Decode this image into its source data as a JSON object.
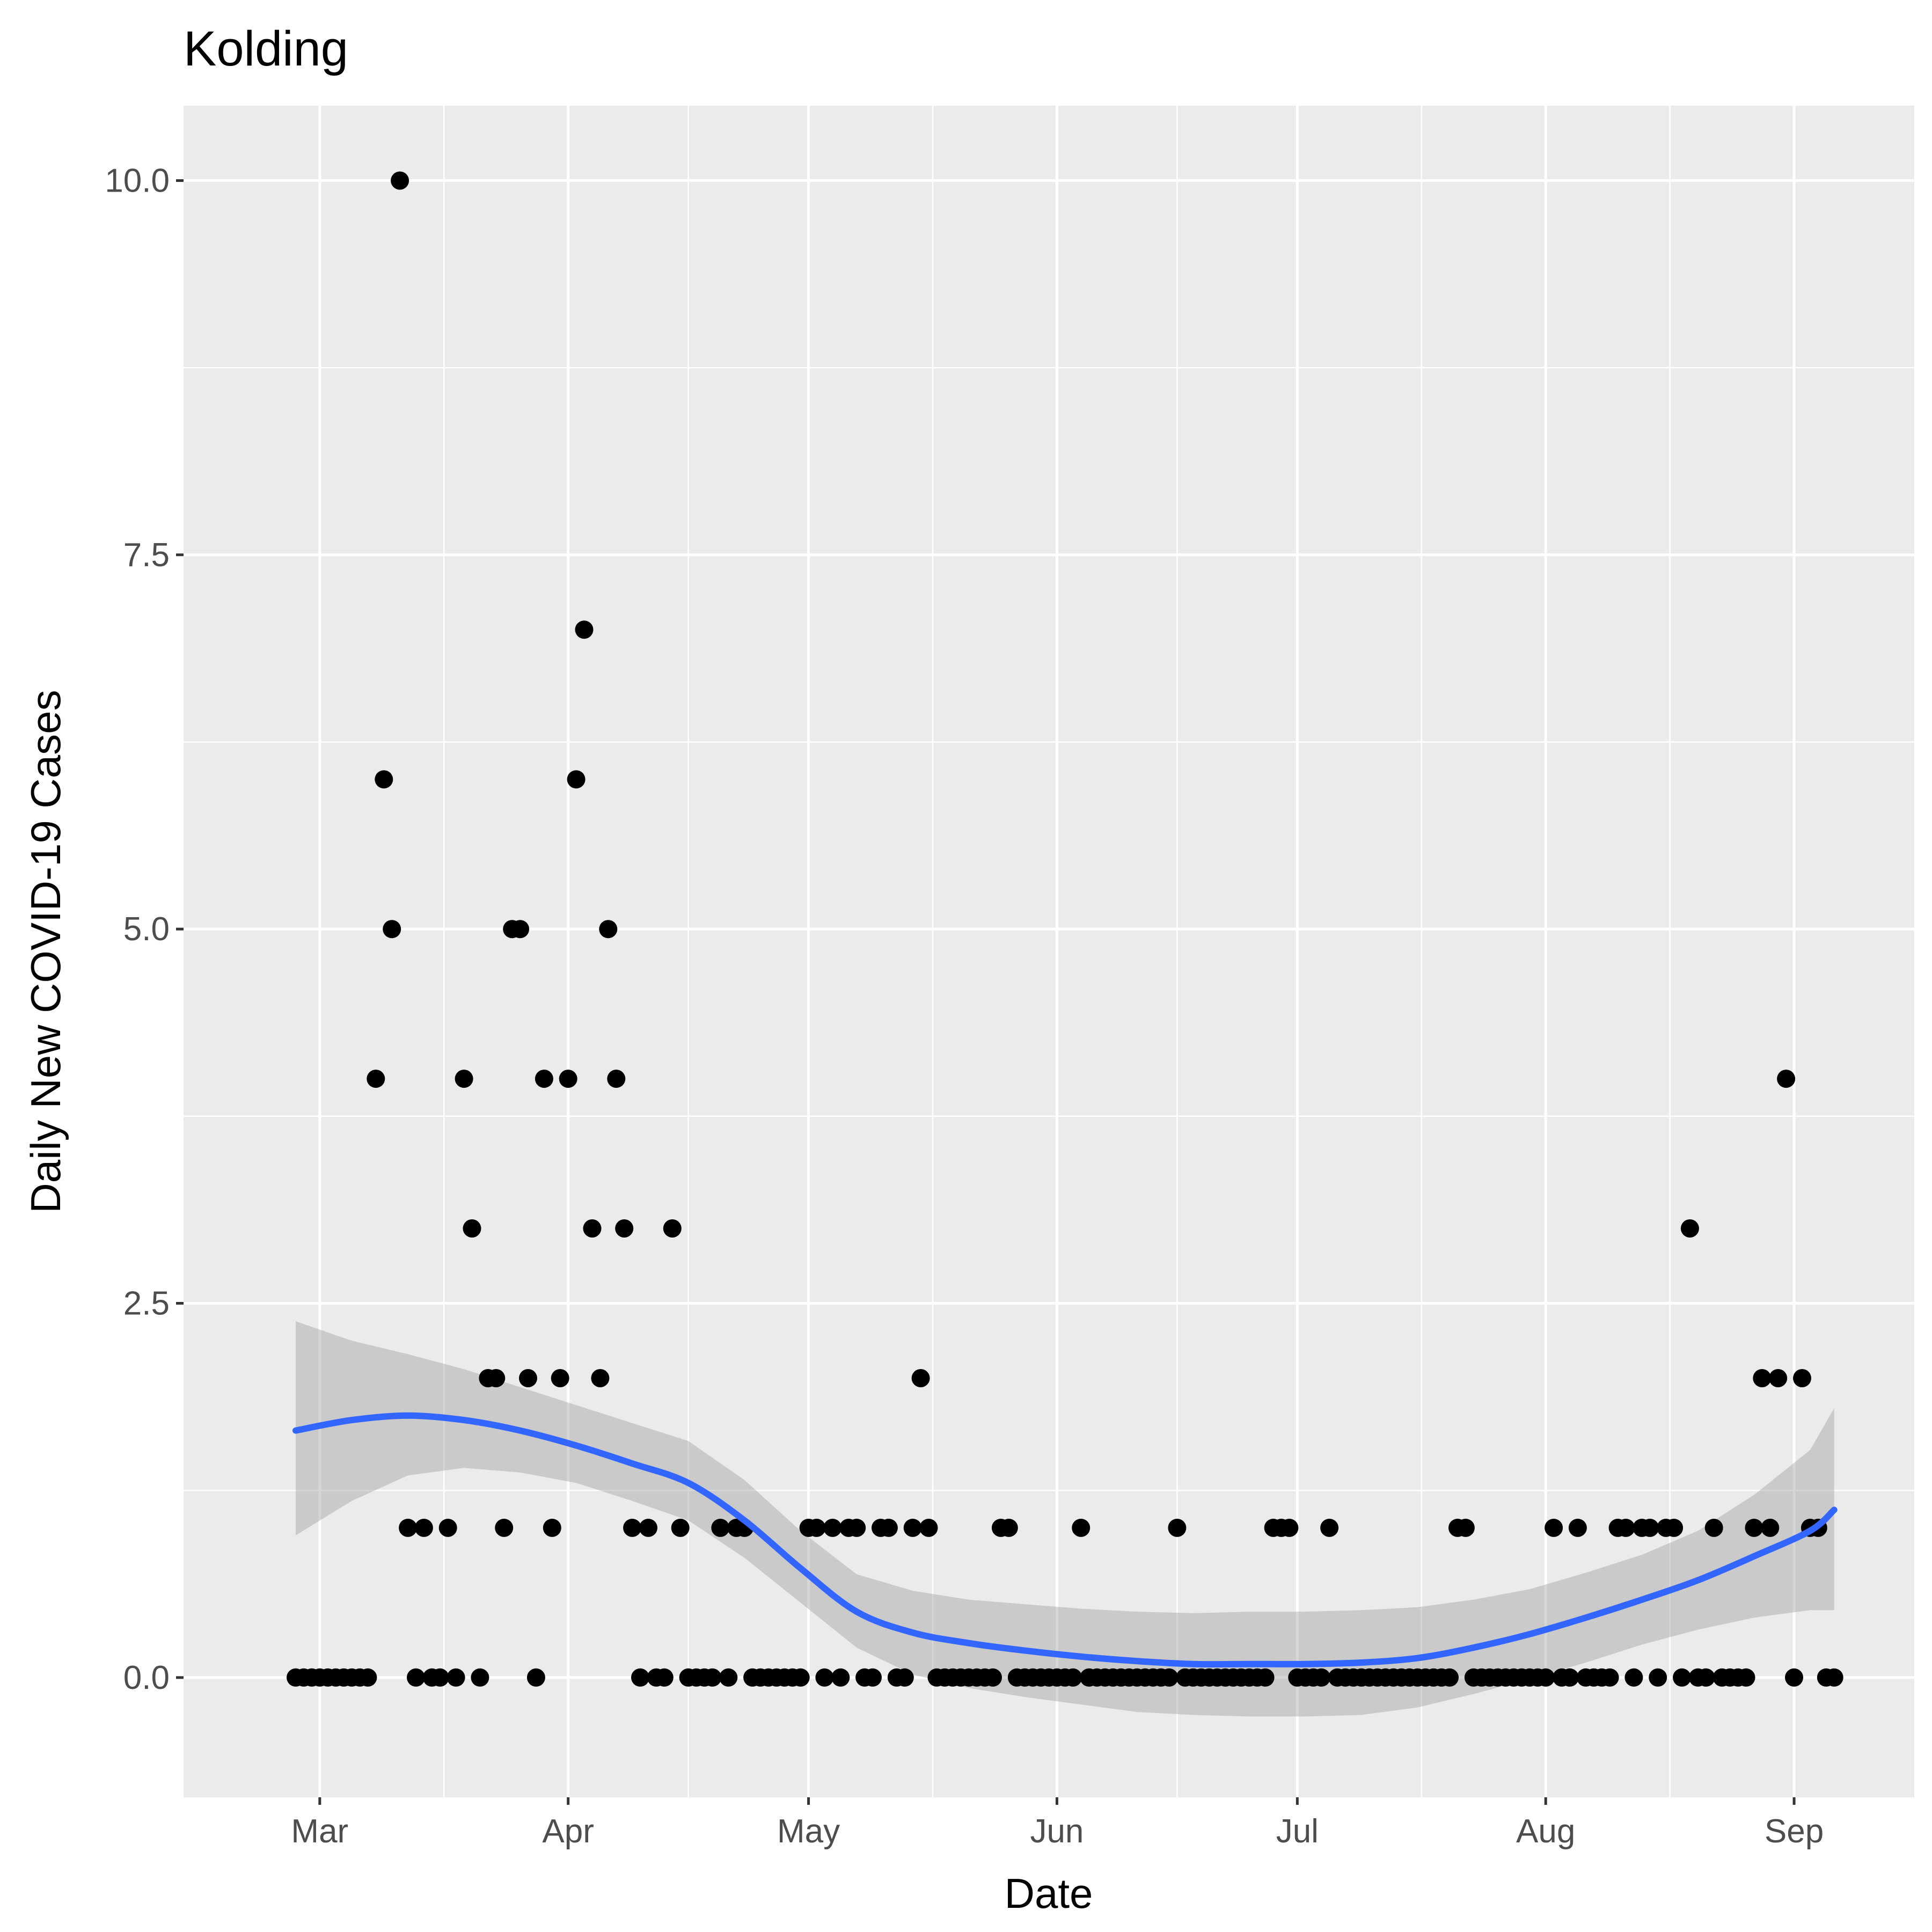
{
  "chart_data": {
    "type": "scatter",
    "title": "Kolding",
    "xlabel": "Date",
    "ylabel": "Daily New COVID-19 Cases",
    "x_ticks": [
      {
        "date": "2020-03-01",
        "label": "Mar"
      },
      {
        "date": "2020-04-01",
        "label": "Apr"
      },
      {
        "date": "2020-05-01",
        "label": "May"
      },
      {
        "date": "2020-06-01",
        "label": "Jun"
      },
      {
        "date": "2020-07-01",
        "label": "Jul"
      },
      {
        "date": "2020-08-01",
        "label": "Aug"
      },
      {
        "date": "2020-09-01",
        "label": "Sep"
      }
    ],
    "y_ticks": [
      {
        "value": 0,
        "label": "0.0"
      },
      {
        "value": 2.5,
        "label": "2.5"
      },
      {
        "value": 5,
        "label": "5.0"
      },
      {
        "value": 7.5,
        "label": "7.5"
      },
      {
        "value": 10,
        "label": "10.0"
      }
    ],
    "xlim": [
      "2020-02-13",
      "2020-09-16"
    ],
    "ylim": [
      -0.8,
      10.5
    ],
    "grid": true,
    "colors": {
      "panel": "#ebebeb",
      "point": "#000000",
      "smooth": "#3366ff",
      "band": "#999999"
    },
    "points": [
      [
        "2020-02-27",
        0
      ],
      [
        "2020-02-28",
        0
      ],
      [
        "2020-02-29",
        0
      ],
      [
        "2020-03-01",
        0
      ],
      [
        "2020-03-02",
        0
      ],
      [
        "2020-03-03",
        0
      ],
      [
        "2020-03-04",
        0
      ],
      [
        "2020-03-05",
        0
      ],
      [
        "2020-03-06",
        0
      ],
      [
        "2020-03-07",
        0
      ],
      [
        "2020-03-08",
        4
      ],
      [
        "2020-03-09",
        6
      ],
      [
        "2020-03-10",
        5
      ],
      [
        "2020-03-11",
        10
      ],
      [
        "2020-03-12",
        1
      ],
      [
        "2020-03-13",
        0
      ],
      [
        "2020-03-14",
        1
      ],
      [
        "2020-03-15",
        0
      ],
      [
        "2020-03-16",
        0
      ],
      [
        "2020-03-17",
        1
      ],
      [
        "2020-03-18",
        0
      ],
      [
        "2020-03-19",
        4
      ],
      [
        "2020-03-20",
        3
      ],
      [
        "2020-03-21",
        0
      ],
      [
        "2020-03-22",
        2
      ],
      [
        "2020-03-23",
        2
      ],
      [
        "2020-03-24",
        1
      ],
      [
        "2020-03-25",
        5
      ],
      [
        "2020-03-26",
        5
      ],
      [
        "2020-03-27",
        2
      ],
      [
        "2020-03-28",
        0
      ],
      [
        "2020-03-29",
        4
      ],
      [
        "2020-03-30",
        1
      ],
      [
        "2020-03-31",
        2
      ],
      [
        "2020-04-01",
        4
      ],
      [
        "2020-04-02",
        6
      ],
      [
        "2020-04-03",
        7
      ],
      [
        "2020-04-04",
        3
      ],
      [
        "2020-04-05",
        2
      ],
      [
        "2020-04-06",
        5
      ],
      [
        "2020-04-07",
        4
      ],
      [
        "2020-04-08",
        3
      ],
      [
        "2020-04-09",
        1
      ],
      [
        "2020-04-10",
        0
      ],
      [
        "2020-04-11",
        1
      ],
      [
        "2020-04-12",
        0
      ],
      [
        "2020-04-13",
        0
      ],
      [
        "2020-04-14",
        3
      ],
      [
        "2020-04-15",
        1
      ],
      [
        "2020-04-16",
        0
      ],
      [
        "2020-04-17",
        0
      ],
      [
        "2020-04-18",
        0
      ],
      [
        "2020-04-19",
        0
      ],
      [
        "2020-04-20",
        1
      ],
      [
        "2020-04-21",
        0
      ],
      [
        "2020-04-22",
        1
      ],
      [
        "2020-04-23",
        1
      ],
      [
        "2020-04-24",
        0
      ],
      [
        "2020-04-25",
        0
      ],
      [
        "2020-04-26",
        0
      ],
      [
        "2020-04-27",
        0
      ],
      [
        "2020-04-28",
        0
      ],
      [
        "2020-04-29",
        0
      ],
      [
        "2020-04-30",
        0
      ],
      [
        "2020-05-01",
        1
      ],
      [
        "2020-05-02",
        1
      ],
      [
        "2020-05-03",
        0
      ],
      [
        "2020-05-04",
        1
      ],
      [
        "2020-05-05",
        0
      ],
      [
        "2020-05-06",
        1
      ],
      [
        "2020-05-07",
        1
      ],
      [
        "2020-05-08",
        0
      ],
      [
        "2020-05-09",
        0
      ],
      [
        "2020-05-10",
        1
      ],
      [
        "2020-05-11",
        1
      ],
      [
        "2020-05-12",
        0
      ],
      [
        "2020-05-13",
        0
      ],
      [
        "2020-05-14",
        1
      ],
      [
        "2020-05-15",
        2
      ],
      [
        "2020-05-16",
        1
      ],
      [
        "2020-05-17",
        0
      ],
      [
        "2020-05-18",
        0
      ],
      [
        "2020-05-19",
        0
      ],
      [
        "2020-05-20",
        0
      ],
      [
        "2020-05-21",
        0
      ],
      [
        "2020-05-22",
        0
      ],
      [
        "2020-05-23",
        0
      ],
      [
        "2020-05-24",
        0
      ],
      [
        "2020-05-25",
        1
      ],
      [
        "2020-05-26",
        1
      ],
      [
        "2020-05-27",
        0
      ],
      [
        "2020-05-28",
        0
      ],
      [
        "2020-05-29",
        0
      ],
      [
        "2020-05-30",
        0
      ],
      [
        "2020-05-31",
        0
      ],
      [
        "2020-06-01",
        0
      ],
      [
        "2020-06-02",
        0
      ],
      [
        "2020-06-03",
        0
      ],
      [
        "2020-06-04",
        1
      ],
      [
        "2020-06-05",
        0
      ],
      [
        "2020-06-06",
        0
      ],
      [
        "2020-06-07",
        0
      ],
      [
        "2020-06-08",
        0
      ],
      [
        "2020-06-09",
        0
      ],
      [
        "2020-06-10",
        0
      ],
      [
        "2020-06-11",
        0
      ],
      [
        "2020-06-12",
        0
      ],
      [
        "2020-06-13",
        0
      ],
      [
        "2020-06-14",
        0
      ],
      [
        "2020-06-15",
        0
      ],
      [
        "2020-06-16",
        1
      ],
      [
        "2020-06-17",
        0
      ],
      [
        "2020-06-18",
        0
      ],
      [
        "2020-06-19",
        0
      ],
      [
        "2020-06-20",
        0
      ],
      [
        "2020-06-21",
        0
      ],
      [
        "2020-06-22",
        0
      ],
      [
        "2020-06-23",
        0
      ],
      [
        "2020-06-24",
        0
      ],
      [
        "2020-06-25",
        0
      ],
      [
        "2020-06-26",
        0
      ],
      [
        "2020-06-27",
        0
      ],
      [
        "2020-06-28",
        1
      ],
      [
        "2020-06-29",
        1
      ],
      [
        "2020-06-30",
        1
      ],
      [
        "2020-07-01",
        0
      ],
      [
        "2020-07-02",
        0
      ],
      [
        "2020-07-03",
        0
      ],
      [
        "2020-07-04",
        0
      ],
      [
        "2020-07-05",
        1
      ],
      [
        "2020-07-06",
        0
      ],
      [
        "2020-07-07",
        0
      ],
      [
        "2020-07-08",
        0
      ],
      [
        "2020-07-09",
        0
      ],
      [
        "2020-07-10",
        0
      ],
      [
        "2020-07-11",
        0
      ],
      [
        "2020-07-12",
        0
      ],
      [
        "2020-07-13",
        0
      ],
      [
        "2020-07-14",
        0
      ],
      [
        "2020-07-15",
        0
      ],
      [
        "2020-07-16",
        0
      ],
      [
        "2020-07-17",
        0
      ],
      [
        "2020-07-18",
        0
      ],
      [
        "2020-07-19",
        0
      ],
      [
        "2020-07-20",
        0
      ],
      [
        "2020-07-21",
        1
      ],
      [
        "2020-07-22",
        1
      ],
      [
        "2020-07-23",
        0
      ],
      [
        "2020-07-24",
        0
      ],
      [
        "2020-07-25",
        0
      ],
      [
        "2020-07-26",
        0
      ],
      [
        "2020-07-27",
        0
      ],
      [
        "2020-07-28",
        0
      ],
      [
        "2020-07-29",
        0
      ],
      [
        "2020-07-30",
        0
      ],
      [
        "2020-07-31",
        0
      ],
      [
        "2020-08-01",
        0
      ],
      [
        "2020-08-02",
        1
      ],
      [
        "2020-08-03",
        0
      ],
      [
        "2020-08-04",
        0
      ],
      [
        "2020-08-05",
        1
      ],
      [
        "2020-08-06",
        0
      ],
      [
        "2020-08-07",
        0
      ],
      [
        "2020-08-08",
        0
      ],
      [
        "2020-08-09",
        0
      ],
      [
        "2020-08-10",
        1
      ],
      [
        "2020-08-11",
        1
      ],
      [
        "2020-08-12",
        0
      ],
      [
        "2020-08-13",
        1
      ],
      [
        "2020-08-14",
        1
      ],
      [
        "2020-08-15",
        0
      ],
      [
        "2020-08-16",
        1
      ],
      [
        "2020-08-17",
        1
      ],
      [
        "2020-08-18",
        0
      ],
      [
        "2020-08-19",
        3
      ],
      [
        "2020-08-20",
        0
      ],
      [
        "2020-08-21",
        0
      ],
      [
        "2020-08-22",
        1
      ],
      [
        "2020-08-23",
        0
      ],
      [
        "2020-08-24",
        0
      ],
      [
        "2020-08-25",
        0
      ],
      [
        "2020-08-26",
        0
      ],
      [
        "2020-08-27",
        1
      ],
      [
        "2020-08-28",
        2
      ],
      [
        "2020-08-29",
        1
      ],
      [
        "2020-08-30",
        2
      ],
      [
        "2020-08-31",
        4
      ],
      [
        "2020-09-01",
        0
      ],
      [
        "2020-09-02",
        2
      ],
      [
        "2020-09-03",
        1
      ],
      [
        "2020-09-04",
        1
      ],
      [
        "2020-09-05",
        0
      ],
      [
        "2020-09-06",
        0
      ]
    ],
    "smooth": [
      [
        "2020-02-27",
        1.65,
        0.95,
        2.38
      ],
      [
        "2020-03-05",
        1.72,
        1.18,
        2.25
      ],
      [
        "2020-03-12",
        1.75,
        1.35,
        2.16
      ],
      [
        "2020-03-19",
        1.72,
        1.4,
        2.06
      ],
      [
        "2020-03-26",
        1.65,
        1.37,
        1.94
      ],
      [
        "2020-04-02",
        1.55,
        1.3,
        1.82
      ],
      [
        "2020-04-09",
        1.43,
        1.18,
        1.7
      ],
      [
        "2020-04-16",
        1.3,
        1.05,
        1.58
      ],
      [
        "2020-04-23",
        1.05,
        0.8,
        1.32
      ],
      [
        "2020-04-30",
        0.73,
        0.5,
        0.98
      ],
      [
        "2020-05-07",
        0.44,
        0.2,
        0.69
      ],
      [
        "2020-05-14",
        0.3,
        0.02,
        0.58
      ],
      [
        "2020-05-21",
        0.23,
        -0.07,
        0.52
      ],
      [
        "2020-05-28",
        0.18,
        -0.13,
        0.49
      ],
      [
        "2020-06-04",
        0.14,
        -0.18,
        0.46
      ],
      [
        "2020-06-11",
        0.11,
        -0.23,
        0.44
      ],
      [
        "2020-06-18",
        0.09,
        -0.25,
        0.43
      ],
      [
        "2020-06-25",
        0.09,
        -0.26,
        0.44
      ],
      [
        "2020-07-02",
        0.09,
        -0.26,
        0.44
      ],
      [
        "2020-07-09",
        0.1,
        -0.25,
        0.45
      ],
      [
        "2020-07-16",
        0.13,
        -0.2,
        0.47
      ],
      [
        "2020-07-23",
        0.2,
        -0.11,
        0.52
      ],
      [
        "2020-07-30",
        0.29,
        -0.01,
        0.59
      ],
      [
        "2020-08-06",
        0.4,
        0.1,
        0.7
      ],
      [
        "2020-08-13",
        0.52,
        0.22,
        0.82
      ],
      [
        "2020-08-20",
        0.65,
        0.32,
        0.98
      ],
      [
        "2020-08-27",
        0.81,
        0.4,
        1.22
      ],
      [
        "2020-09-03",
        0.98,
        0.45,
        1.52
      ],
      [
        "2020-09-06",
        1.12,
        0.45,
        1.8
      ]
    ]
  }
}
